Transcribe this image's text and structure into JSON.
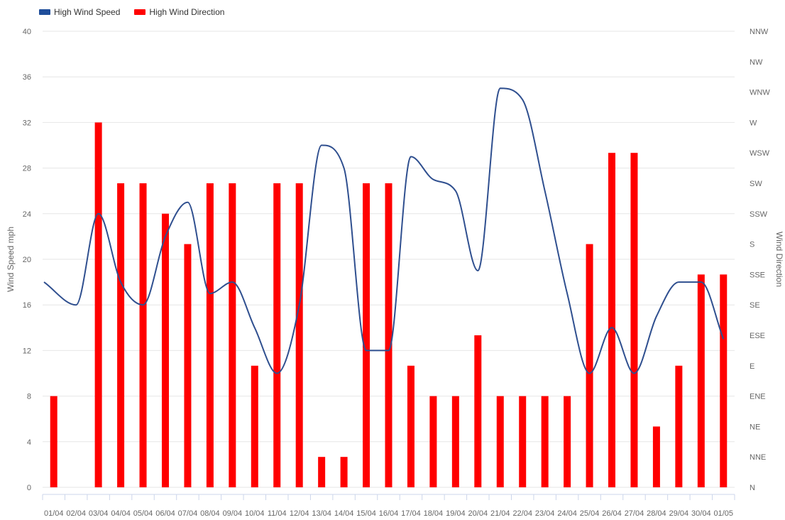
{
  "chart_data": {
    "type": "bar",
    "categories": [
      "01/04",
      "02/04",
      "03/04",
      "04/04",
      "05/04",
      "06/04",
      "07/04",
      "08/04",
      "09/04",
      "10/04",
      "11/04",
      "12/04",
      "13/04",
      "14/04",
      "15/04",
      "16/04",
      "17/04",
      "18/04",
      "19/04",
      "20/04",
      "21/04",
      "22/04",
      "23/04",
      "24/04",
      "25/04",
      "26/04",
      "27/04",
      "28/04",
      "29/04",
      "30/04",
      "01/05"
    ],
    "series": [
      {
        "name": "High Wind Speed",
        "type": "line",
        "axis": "left",
        "color": "#2f4f8f",
        "values": [
          18,
          16,
          24,
          18,
          16,
          22,
          25,
          17,
          18,
          14,
          10,
          16,
          30,
          28,
          12,
          12,
          29,
          27,
          26,
          19,
          35,
          34,
          26,
          17,
          10,
          14,
          10,
          15,
          18,
          18,
          13
        ]
      },
      {
        "name": "High Wind Direction",
        "type": "bar",
        "axis": "right",
        "color": "#ff0000",
        "values": [
          "ENE",
          "N",
          "W",
          "SW",
          "SW",
          "SSW",
          "S",
          "SW",
          "SW",
          "E",
          "SW",
          "SW",
          "NNE",
          "NNE",
          "SW",
          "SW",
          "E",
          "ENE",
          "ENE",
          "ESE",
          "ENE",
          "ENE",
          "ENE",
          "ENE",
          "S",
          "WSW",
          "WSW",
          "NE",
          "E",
          "SSE",
          "SSE"
        ]
      }
    ],
    "y_left": {
      "label": "Wind Speed mph",
      "ylim": [
        0,
        40
      ],
      "ticks": [
        "0",
        "4",
        "8",
        "12",
        "16",
        "20",
        "24",
        "28",
        "32",
        "36",
        "40"
      ]
    },
    "y_right": {
      "label": "Wind Direction",
      "categories": [
        "N",
        "NNE",
        "NE",
        "ENE",
        "E",
        "ESE",
        "SE",
        "SSE",
        "S",
        "SSW",
        "SW",
        "WSW",
        "W",
        "WNW",
        "NW",
        "NNW"
      ]
    },
    "grid": true,
    "legend_position": "top-left"
  },
  "legend": [
    {
      "label": "High Wind Speed",
      "color": "#1f4e9b"
    },
    {
      "label": "High Wind Direction",
      "color": "#ff0000"
    }
  ]
}
